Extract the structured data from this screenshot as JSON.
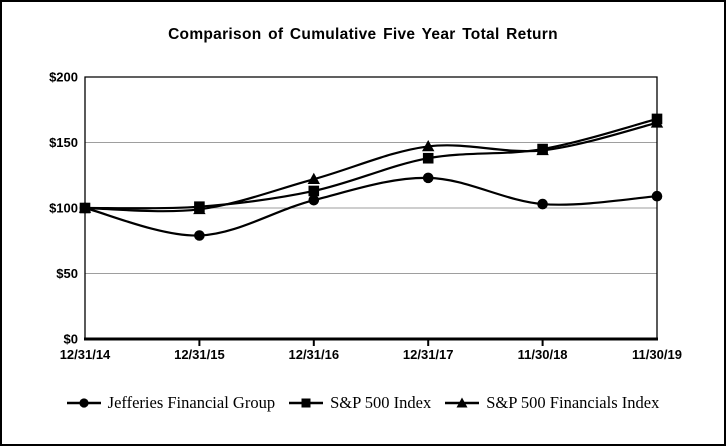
{
  "chart_data": {
    "type": "line",
    "title": "Comparison of Cumulative Five Year Total Return",
    "categories": [
      "12/31/14",
      "12/31/15",
      "12/31/16",
      "12/31/17",
      "11/30/18",
      "11/30/19"
    ],
    "series": [
      {
        "name": "Jefferies Financial Group",
        "marker": "circle",
        "values": [
          100,
          79,
          106,
          123,
          103,
          109
        ]
      },
      {
        "name": "S&P 500 Index",
        "marker": "square",
        "values": [
          100,
          101,
          113,
          138,
          145,
          168
        ]
      },
      {
        "name": "S&P 500 Financials Index",
        "marker": "triangle",
        "values": [
          100,
          99,
          122,
          147,
          144,
          165
        ]
      }
    ],
    "ylim": [
      0,
      200
    ],
    "y_ticks": [
      {
        "value": 0,
        "label": "$0"
      },
      {
        "value": 50,
        "label": "$50"
      },
      {
        "value": 100,
        "label": "$100"
      },
      {
        "value": 150,
        "label": "$150"
      },
      {
        "value": 200,
        "label": "$200"
      }
    ],
    "grid": true,
    "legend_position": "bottom",
    "colors": {
      "line": "#000000",
      "gridline": "#9e9e9e",
      "axis": "#000000",
      "text": "#000000",
      "background": "#ffffff"
    }
  }
}
